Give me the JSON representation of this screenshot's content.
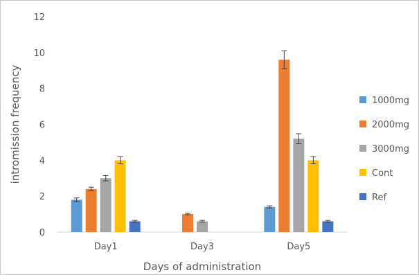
{
  "chart_data": {
    "type": "bar",
    "title": "",
    "xlabel": "Days of administration",
    "ylabel": "intromission frequency",
    "ylim": [
      0,
      12
    ],
    "yticks": [
      0,
      2,
      4,
      6,
      8,
      10,
      12
    ],
    "grid": false,
    "error_bars": true,
    "legend_position": "right",
    "categories": [
      "Day1",
      "Day3",
      "Day5"
    ],
    "series": [
      {
        "name": "1000mg",
        "color": "#5b9bd5",
        "values": [
          1.8,
          0,
          1.4
        ],
        "errors": [
          0.1,
          0,
          0.06
        ]
      },
      {
        "name": "2000mg",
        "color": "#ed7d31",
        "values": [
          2.4,
          1.0,
          9.6
        ],
        "errors": [
          0.1,
          0.04,
          0.5
        ]
      },
      {
        "name": "3000mg",
        "color": "#a5a5a5",
        "values": [
          3.0,
          0.6,
          5.2
        ],
        "errors": [
          0.15,
          0.05,
          0.28
        ]
      },
      {
        "name": "Cont",
        "color": "#ffc000",
        "values": [
          4.0,
          0,
          4.0
        ],
        "errors": [
          0.2,
          0,
          0.2
        ]
      },
      {
        "name": "Ref",
        "color": "#4472c4",
        "values": [
          0.6,
          0,
          0.6
        ],
        "errors": [
          0.05,
          0,
          0.05
        ]
      }
    ]
  }
}
